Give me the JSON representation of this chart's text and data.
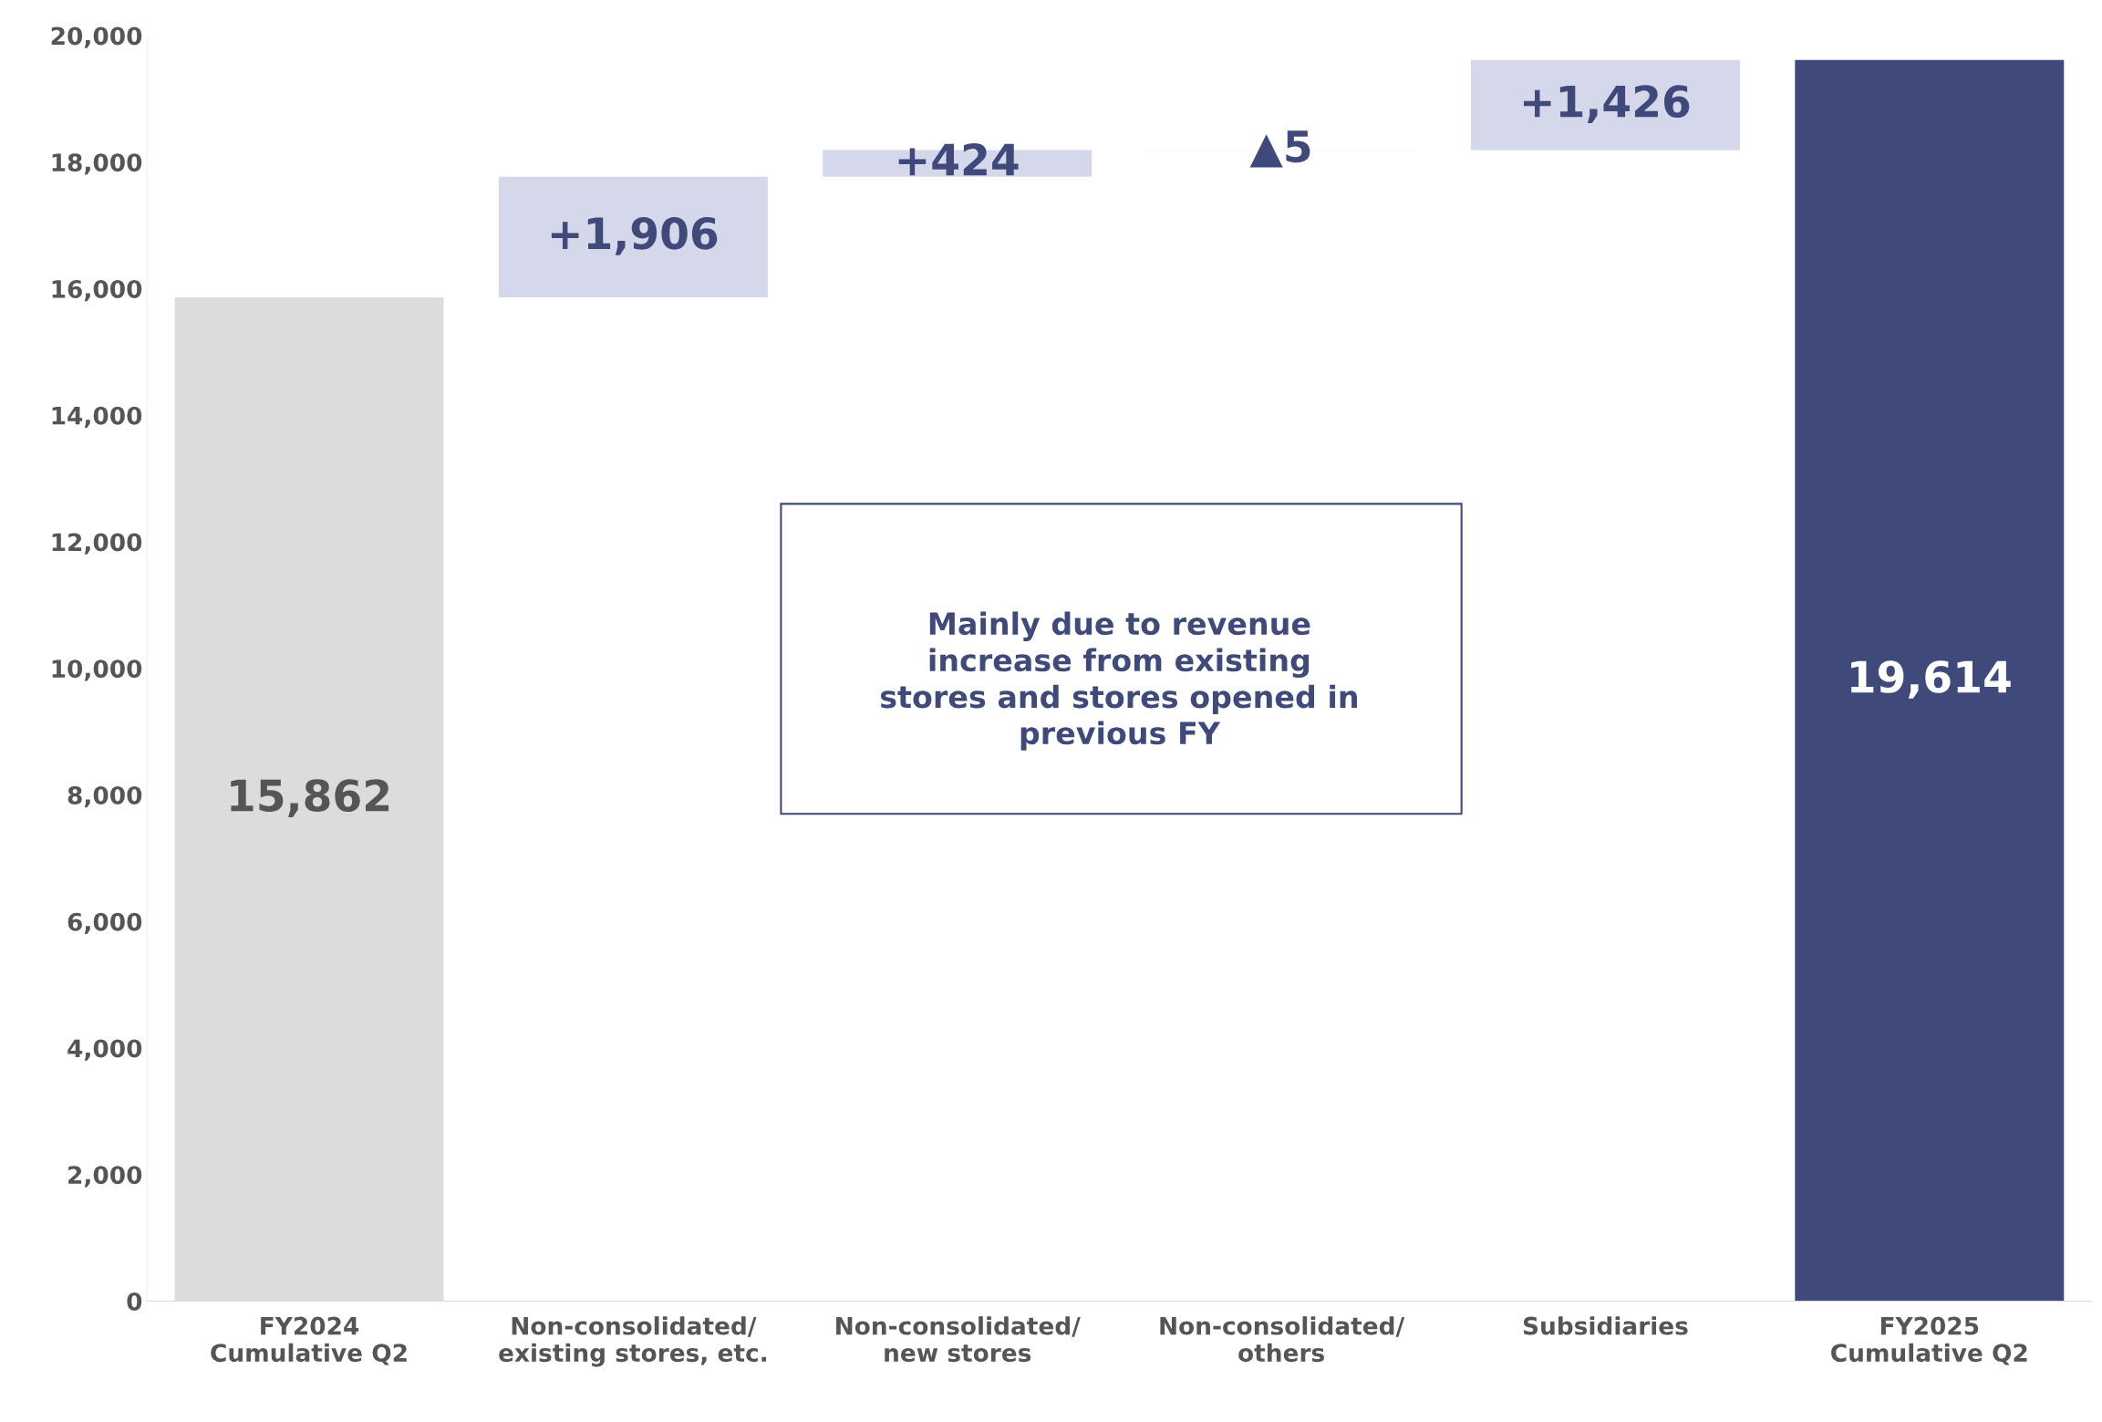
{
  "chart_data": {
    "type": "bar",
    "categories": [
      "FY2024\nCumulative Q2",
      "Non-consolidated/\nexisting stores, etc.",
      "Non-consolidated/\nnew stores",
      "Non-consolidated/\nothers",
      "Subsidiaries",
      "FY2025\nCumulative Q2"
    ],
    "values": [
      15862,
      1906,
      424,
      -5,
      1426,
      19614
    ],
    "base": [
      0,
      15862,
      17768,
      18192,
      18187,
      0
    ],
    "colors": [
      "#dcdcdc",
      "#d5d8ea",
      "#d5d8ea",
      "#d5d8ea",
      "#d5d8ea",
      "#3f4a7a"
    ],
    "value_labels": [
      "15,862",
      "+1,906",
      "+424",
      "▲5",
      "+1,426",
      "19,614"
    ],
    "ylim": [
      0,
      20000
    ],
    "yticks": [
      0,
      {
        "value": 2000,
        "label": "2,000"
      },
      {
        "value": 4000,
        "label": "4,000"
      },
      {
        "value": 6000,
        "label": "6,000"
      },
      {
        "value": 8000,
        "label": "8,000"
      },
      {
        "value": 10000,
        "label": "10,000"
      },
      {
        "value": 12000,
        "label": "12,000"
      },
      {
        "value": 14000,
        "label": "14,000"
      },
      {
        "value": 16000,
        "label": "16,000"
      },
      {
        "value": 18000,
        "label": "18,000"
      },
      {
        "value": 20000,
        "label": "20,000"
      }
    ],
    "grid": false,
    "legend": false,
    "annotations": [
      "Mainly due to revenue\nincrease from existing\nstores and stores opened in\nprevious FY"
    ]
  }
}
